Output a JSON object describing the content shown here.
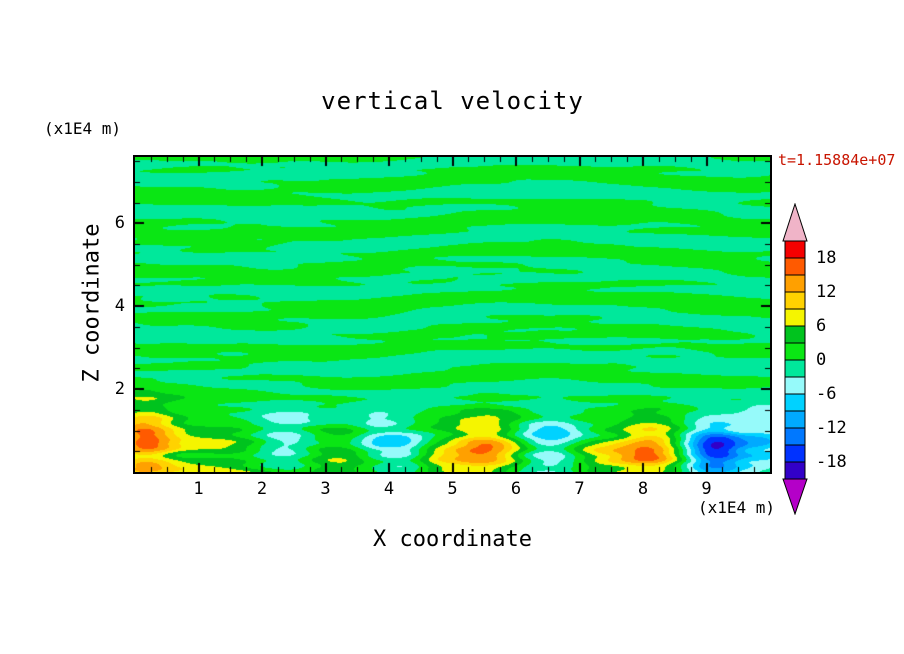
{
  "page": {
    "background": "#ffffff"
  },
  "chart": {
    "title": "vertical velocity",
    "timestamp": "t=1.15884e+07",
    "timestamp_color": "#c81400",
    "x_axis": {
      "label": "X coordinate",
      "unit": "(x1E4 m)",
      "min": 0,
      "max": 10,
      "major_ticks": [
        1,
        2,
        3,
        4,
        5,
        6,
        7,
        8,
        9
      ],
      "minor_step": 0.25
    },
    "z_axis": {
      "label": "Z coordinate",
      "unit": "(x1E4 m)",
      "min": 0,
      "max": 7.6,
      "major_ticks": [
        2,
        4,
        6
      ],
      "minor_step": 0.5
    },
    "colorbar": {
      "labels": [
        "18",
        "12",
        "6",
        "0",
        "-6",
        "-12",
        "-18"
      ],
      "interval": 3,
      "box_colors_bottom_to_top": [
        "#3200c8",
        "#0032ff",
        "#0078ff",
        "#00aaff",
        "#00d2ff",
        "#96fafa",
        "#00e89b",
        "#0ae614",
        "#00c31e",
        "#f5f500",
        "#ffd200",
        "#ffa000",
        "#ff5a00",
        "#f50000"
      ],
      "under_arrow_color": "#b400c8",
      "over_arrow_color": "#f0b4c8"
    }
  },
  "chart_data": {
    "type": "heatmap",
    "title": "vertical velocity",
    "xlabel": "X coordinate (x1E4 m)",
    "ylabel": "Z coordinate (x1E4 m)",
    "x_range": [
      0,
      10
    ],
    "z_range": [
      0,
      7.6
    ],
    "time_label": "t=1.15884e+07",
    "contour_interval": 3,
    "levels": [
      -21,
      -18,
      -15,
      -12,
      -9,
      -6,
      -3,
      0,
      3,
      6,
      9,
      12,
      15,
      18,
      21
    ],
    "value_range_displayed": [
      -21,
      21
    ],
    "description": "Filled-contour plot of vertical velocity: weak (within about +/-3) horizontally elongated streaks fill the interior above z=2x1E4 m; stronger convective cells sit below z=2x1E4 m, with updraft maxima (yellow/orange, +12 to +15) near x=0.15, 5.5 and 8.15, and downdraft minima (cyan/blue, -6 to -19) near x=2.35, 3.85, 6.55, 9.15 and the right edge; strongest downdraft about -19 near x=9.15.",
    "field_model": {
      "streaks": [
        {
          "amp": 1.2,
          "kz": 6.5,
          "kx": 0.6,
          "phase": 0.4,
          "warp": 2.0
        },
        {
          "amp": 0.8,
          "kz": 10.5,
          "kx": 1.15,
          "phase": 2.3,
          "warp": 1.5
        },
        {
          "amp": 0.55,
          "kz": 16.0,
          "kx": 2.0,
          "phase": 4.1,
          "warp": 1.0
        },
        {
          "amp": 0.35,
          "kz": 25.0,
          "kx": 3.3,
          "phase": 1.2,
          "warp": 0.6
        }
      ],
      "bottom_boost": {
        "scale": 1.1,
        "decay": 1.5
      },
      "bottom_base": {
        "amp": 1.3,
        "decay": 1.1
      },
      "cells": [
        {
          "x": 0.15,
          "z": 0.75,
          "sx": 0.5,
          "sz": 0.9,
          "amp": 14
        },
        {
          "x": 1.35,
          "z": 0.4,
          "sx": 0.9,
          "sz": 0.8,
          "amp": 5
        },
        {
          "x": 2.35,
          "z": 0.7,
          "sx": 0.55,
          "sz": 0.8,
          "amp": -6.5
        },
        {
          "x": 3.15,
          "z": 0.35,
          "sx": 0.6,
          "sz": 0.6,
          "amp": 5
        },
        {
          "x": 3.85,
          "z": 0.8,
          "sx": 0.4,
          "sz": 0.7,
          "amp": -6
        },
        {
          "x": 4.3,
          "z": 0.45,
          "sx": 0.35,
          "sz": 0.6,
          "amp": -5
        },
        {
          "x": 4.8,
          "z": 0.3,
          "sx": 0.45,
          "sz": 0.5,
          "amp": 4.5
        },
        {
          "x": 5.5,
          "z": 0.6,
          "sx": 0.55,
          "sz": 0.7,
          "amp": 13
        },
        {
          "x": 6.55,
          "z": 0.65,
          "sx": 0.5,
          "sz": 0.75,
          "amp": -8
        },
        {
          "x": 7.45,
          "z": 0.35,
          "sx": 0.65,
          "sz": 0.6,
          "amp": 6
        },
        {
          "x": 8.15,
          "z": 0.55,
          "sx": 0.5,
          "sz": 0.7,
          "amp": 12
        },
        {
          "x": 9.15,
          "z": 0.5,
          "sx": 0.5,
          "sz": 0.65,
          "amp": -19
        },
        {
          "x": 9.95,
          "z": 0.7,
          "sx": 0.4,
          "sz": 0.9,
          "amp": -7
        }
      ]
    }
  }
}
